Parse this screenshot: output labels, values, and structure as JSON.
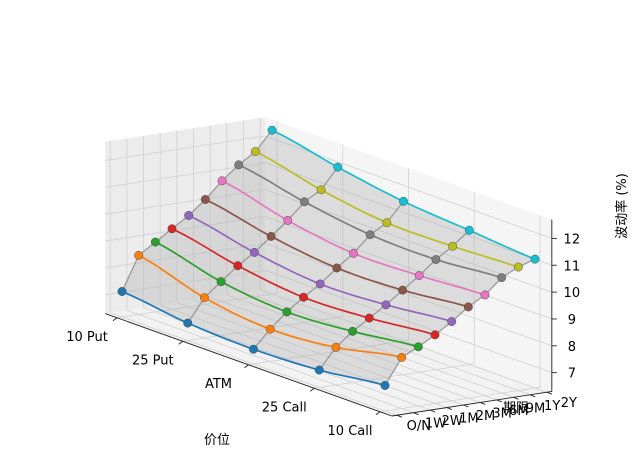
{
  "chart_data": {
    "type": "surface3d",
    "title": "",
    "xlabel": "价位",
    "ylabel": "期限",
    "zlabel": "波动率 (%)",
    "x_categories": [
      "10 Put",
      "25 Put",
      "ATM",
      "25 Call",
      "10 Call"
    ],
    "y_categories": [
      "O/N",
      "1W",
      "2W",
      "1M",
      "2M",
      "3M",
      "6M",
      "9M",
      "1Y",
      "2Y"
    ],
    "zlim": [
      6.3,
      12.7
    ],
    "zticks": [
      7,
      8,
      9,
      10,
      11,
      12
    ],
    "grid": true,
    "series": [
      {
        "tenor": "O/N",
        "color": "#1f77b4",
        "values": [
          7.25,
          6.95,
          6.85,
          6.95,
          7.25
        ]
      },
      {
        "tenor": "1W",
        "color": "#ff7f0e",
        "values": [
          8.5,
          7.8,
          7.5,
          7.7,
          8.2
        ]
      },
      {
        "tenor": "2W",
        "color": "#2ca02c",
        "values": [
          8.9,
          8.3,
          8.05,
          8.2,
          8.5
        ]
      },
      {
        "tenor": "1M",
        "color": "#d62728",
        "values": [
          9.3,
          8.8,
          8.5,
          8.6,
          8.85
        ]
      },
      {
        "tenor": "2M",
        "color": "#9467bd",
        "values": [
          9.7,
          9.2,
          8.9,
          9.0,
          9.25
        ]
      },
      {
        "tenor": "3M",
        "color": "#8c564b",
        "values": [
          10.2,
          9.7,
          9.4,
          9.45,
          9.7
        ]
      },
      {
        "tenor": "6M",
        "color": "#e377c2",
        "values": [
          10.8,
          10.2,
          9.85,
          9.9,
          10.05
        ]
      },
      {
        "tenor": "9M",
        "color": "#7f7f7f",
        "values": [
          11.3,
          10.8,
          10.45,
          10.4,
          10.6
        ]
      },
      {
        "tenor": "1Y",
        "color": "#bcbd22",
        "values": [
          11.7,
          11.15,
          10.8,
          10.8,
          10.9
        ]
      },
      {
        "tenor": "2Y",
        "color": "#17becf",
        "values": [
          12.4,
          11.9,
          11.5,
          11.3,
          11.1
        ]
      }
    ]
  }
}
